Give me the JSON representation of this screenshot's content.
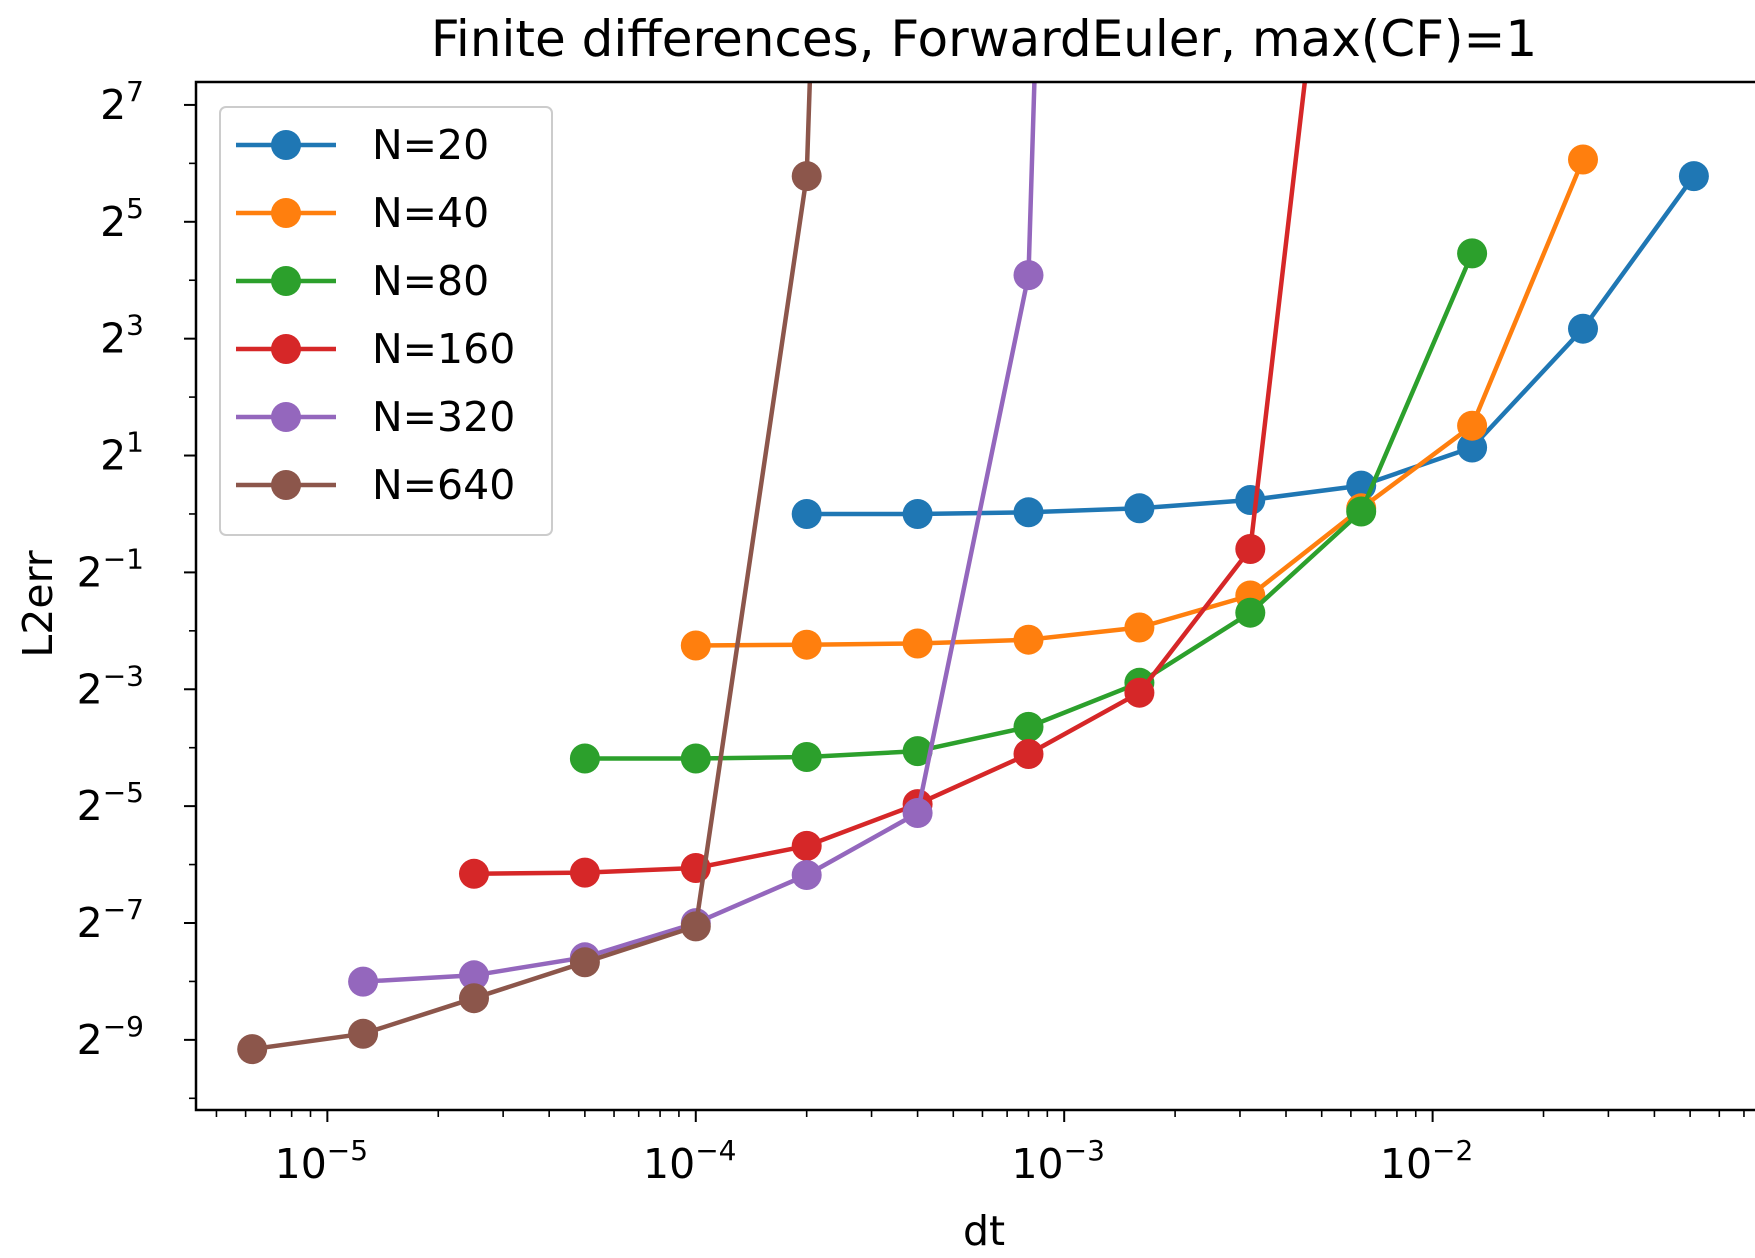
{
  "chart_data": {
    "type": "line",
    "title": "Finite differences, ForwardEuler, max(CF)=1",
    "xlabel": "dt",
    "ylabel": "L2err",
    "xscale": "log10",
    "yscale": "log2",
    "xlim": [
      4.4e-06,
      0.075
    ],
    "ylim": [
      0.00085,
      168
    ],
    "grid": false,
    "legend_position": "upper-left",
    "markers": "circle",
    "x_ticks": [
      {
        "base": "10",
        "exp": "−5",
        "value": 1e-05
      },
      {
        "base": "10",
        "exp": "−4",
        "value": 0.0001
      },
      {
        "base": "10",
        "exp": "−3",
        "value": 0.001
      },
      {
        "base": "10",
        "exp": "−2",
        "value": 0.01
      }
    ],
    "y_ticks": [
      {
        "base": "2",
        "exp": "−9",
        "value": 0.001953125
      },
      {
        "base": "2",
        "exp": "−7",
        "value": 0.0078125
      },
      {
        "base": "2",
        "exp": "−5",
        "value": 0.03125
      },
      {
        "base": "2",
        "exp": "−3",
        "value": 0.125
      },
      {
        "base": "2",
        "exp": "−1",
        "value": 0.5
      },
      {
        "base": "2",
        "exp": "1",
        "value": 2
      },
      {
        "base": "2",
        "exp": "3",
        "value": 8
      },
      {
        "base": "2",
        "exp": "5",
        "value": 32
      },
      {
        "base": "2",
        "exp": "7",
        "value": 128
      }
    ],
    "series": [
      {
        "name": "N=20",
        "color": "#1f77b4",
        "points": [
          [
            0.0002,
            1.0
          ],
          [
            0.0004,
            1.0
          ],
          [
            0.0008,
            1.02
          ],
          [
            0.0016,
            1.07
          ],
          [
            0.0032,
            1.18
          ],
          [
            0.0064,
            1.4
          ],
          [
            0.0128,
            2.2
          ],
          [
            0.0256,
            9.0
          ],
          [
            0.0512,
            55.0
          ]
        ]
      },
      {
        "name": "N=40",
        "color": "#ff7f0e",
        "points": [
          [
            0.0001,
            0.21
          ],
          [
            0.0002,
            0.212
          ],
          [
            0.0004,
            0.215
          ],
          [
            0.0008,
            0.225
          ],
          [
            0.0016,
            0.26
          ],
          [
            0.0032,
            0.38
          ],
          [
            0.0064,
            1.07
          ],
          [
            0.0128,
            2.85
          ],
          [
            0.0256,
            67.0
          ]
        ]
      },
      {
        "name": "N=80",
        "color": "#2ca02c",
        "points": [
          [
            5e-05,
            0.055
          ],
          [
            0.0001,
            0.055
          ],
          [
            0.0002,
            0.056
          ],
          [
            0.0004,
            0.06
          ],
          [
            0.0008,
            0.08
          ],
          [
            0.0016,
            0.135
          ],
          [
            0.0032,
            0.31
          ],
          [
            0.0064,
            1.03
          ],
          [
            0.0128,
            22.0
          ]
        ]
      },
      {
        "name": "N=160",
        "color": "#d62728",
        "points": [
          [
            2.5e-05,
            0.014
          ],
          [
            5e-05,
            0.0142
          ],
          [
            0.0001,
            0.015
          ],
          [
            0.0002,
            0.0195
          ],
          [
            0.0004,
            0.032
          ],
          [
            0.0008,
            0.058
          ],
          [
            0.0016,
            0.12
          ],
          [
            0.0032,
            0.66
          ],
          [
            0.0045,
            168
          ]
        ]
      },
      {
        "name": "N=320",
        "color": "#9467bd",
        "points": [
          [
            1.25e-05,
            0.0039
          ],
          [
            2.5e-05,
            0.0042
          ],
          [
            5e-05,
            0.0052
          ],
          [
            0.0001,
            0.0078
          ],
          [
            0.0002,
            0.0138
          ],
          [
            0.0004,
            0.0288
          ],
          [
            0.0008,
            17.0
          ],
          [
            0.00083,
            168
          ]
        ]
      },
      {
        "name": "N=640",
        "color": "#8c564b",
        "points": [
          [
            6.25e-06,
            0.00175
          ],
          [
            1.25e-05,
            0.0021
          ],
          [
            2.5e-05,
            0.0032
          ],
          [
            5e-05,
            0.0049
          ],
          [
            0.0001,
            0.0075
          ],
          [
            0.0002,
            55.0
          ],
          [
            0.000204,
            168
          ]
        ]
      }
    ]
  }
}
